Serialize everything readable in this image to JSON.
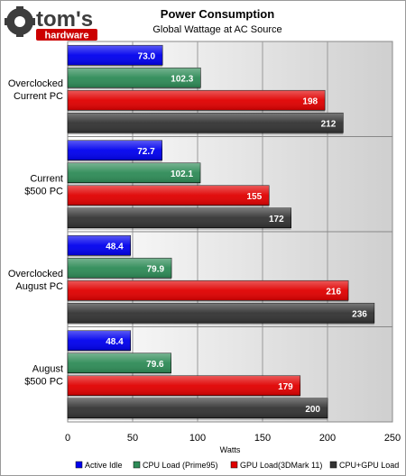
{
  "brand": {
    "name": "tom's",
    "sub": "hardware"
  },
  "chart_data": {
    "type": "bar",
    "orientation": "horizontal",
    "title": "Power Consumption",
    "subtitle": "Global Wattage at AC Source",
    "xlabel": "Watts",
    "ylabel": "",
    "xlim": [
      0,
      250
    ],
    "xticks": [
      0,
      50,
      100,
      150,
      200,
      250
    ],
    "grid": true,
    "legend_position": "bottom",
    "categories": [
      [
        "Overclocked",
        "Current PC"
      ],
      [
        "Current",
        "$500 PC"
      ],
      [
        "Overclocked",
        "August PC"
      ],
      [
        "August",
        "$500 PC"
      ]
    ],
    "series": [
      {
        "name": "Active Idle",
        "color": "#0000ee",
        "values": [
          73.0,
          72.7,
          48.4,
          48.4
        ],
        "labels": [
          "73.0",
          "72.7",
          "48.4",
          "48.4"
        ]
      },
      {
        "name": "CPU Load (Prime95)",
        "color": "#2e8b57",
        "values": [
          102.3,
          102.1,
          79.9,
          79.6
        ],
        "labels": [
          "102.3",
          "102.1",
          "79.9",
          "79.6"
        ]
      },
      {
        "name": "GPU Load(3DMark 11)",
        "color": "#e00000",
        "values": [
          198,
          155,
          216,
          179
        ],
        "labels": [
          "198",
          "155",
          "216",
          "179"
        ]
      },
      {
        "name": "CPU+GPU Load",
        "color": "#333333",
        "values": [
          212,
          172,
          236,
          200
        ],
        "labels": [
          "212",
          "172",
          "236",
          "200"
        ]
      }
    ]
  }
}
